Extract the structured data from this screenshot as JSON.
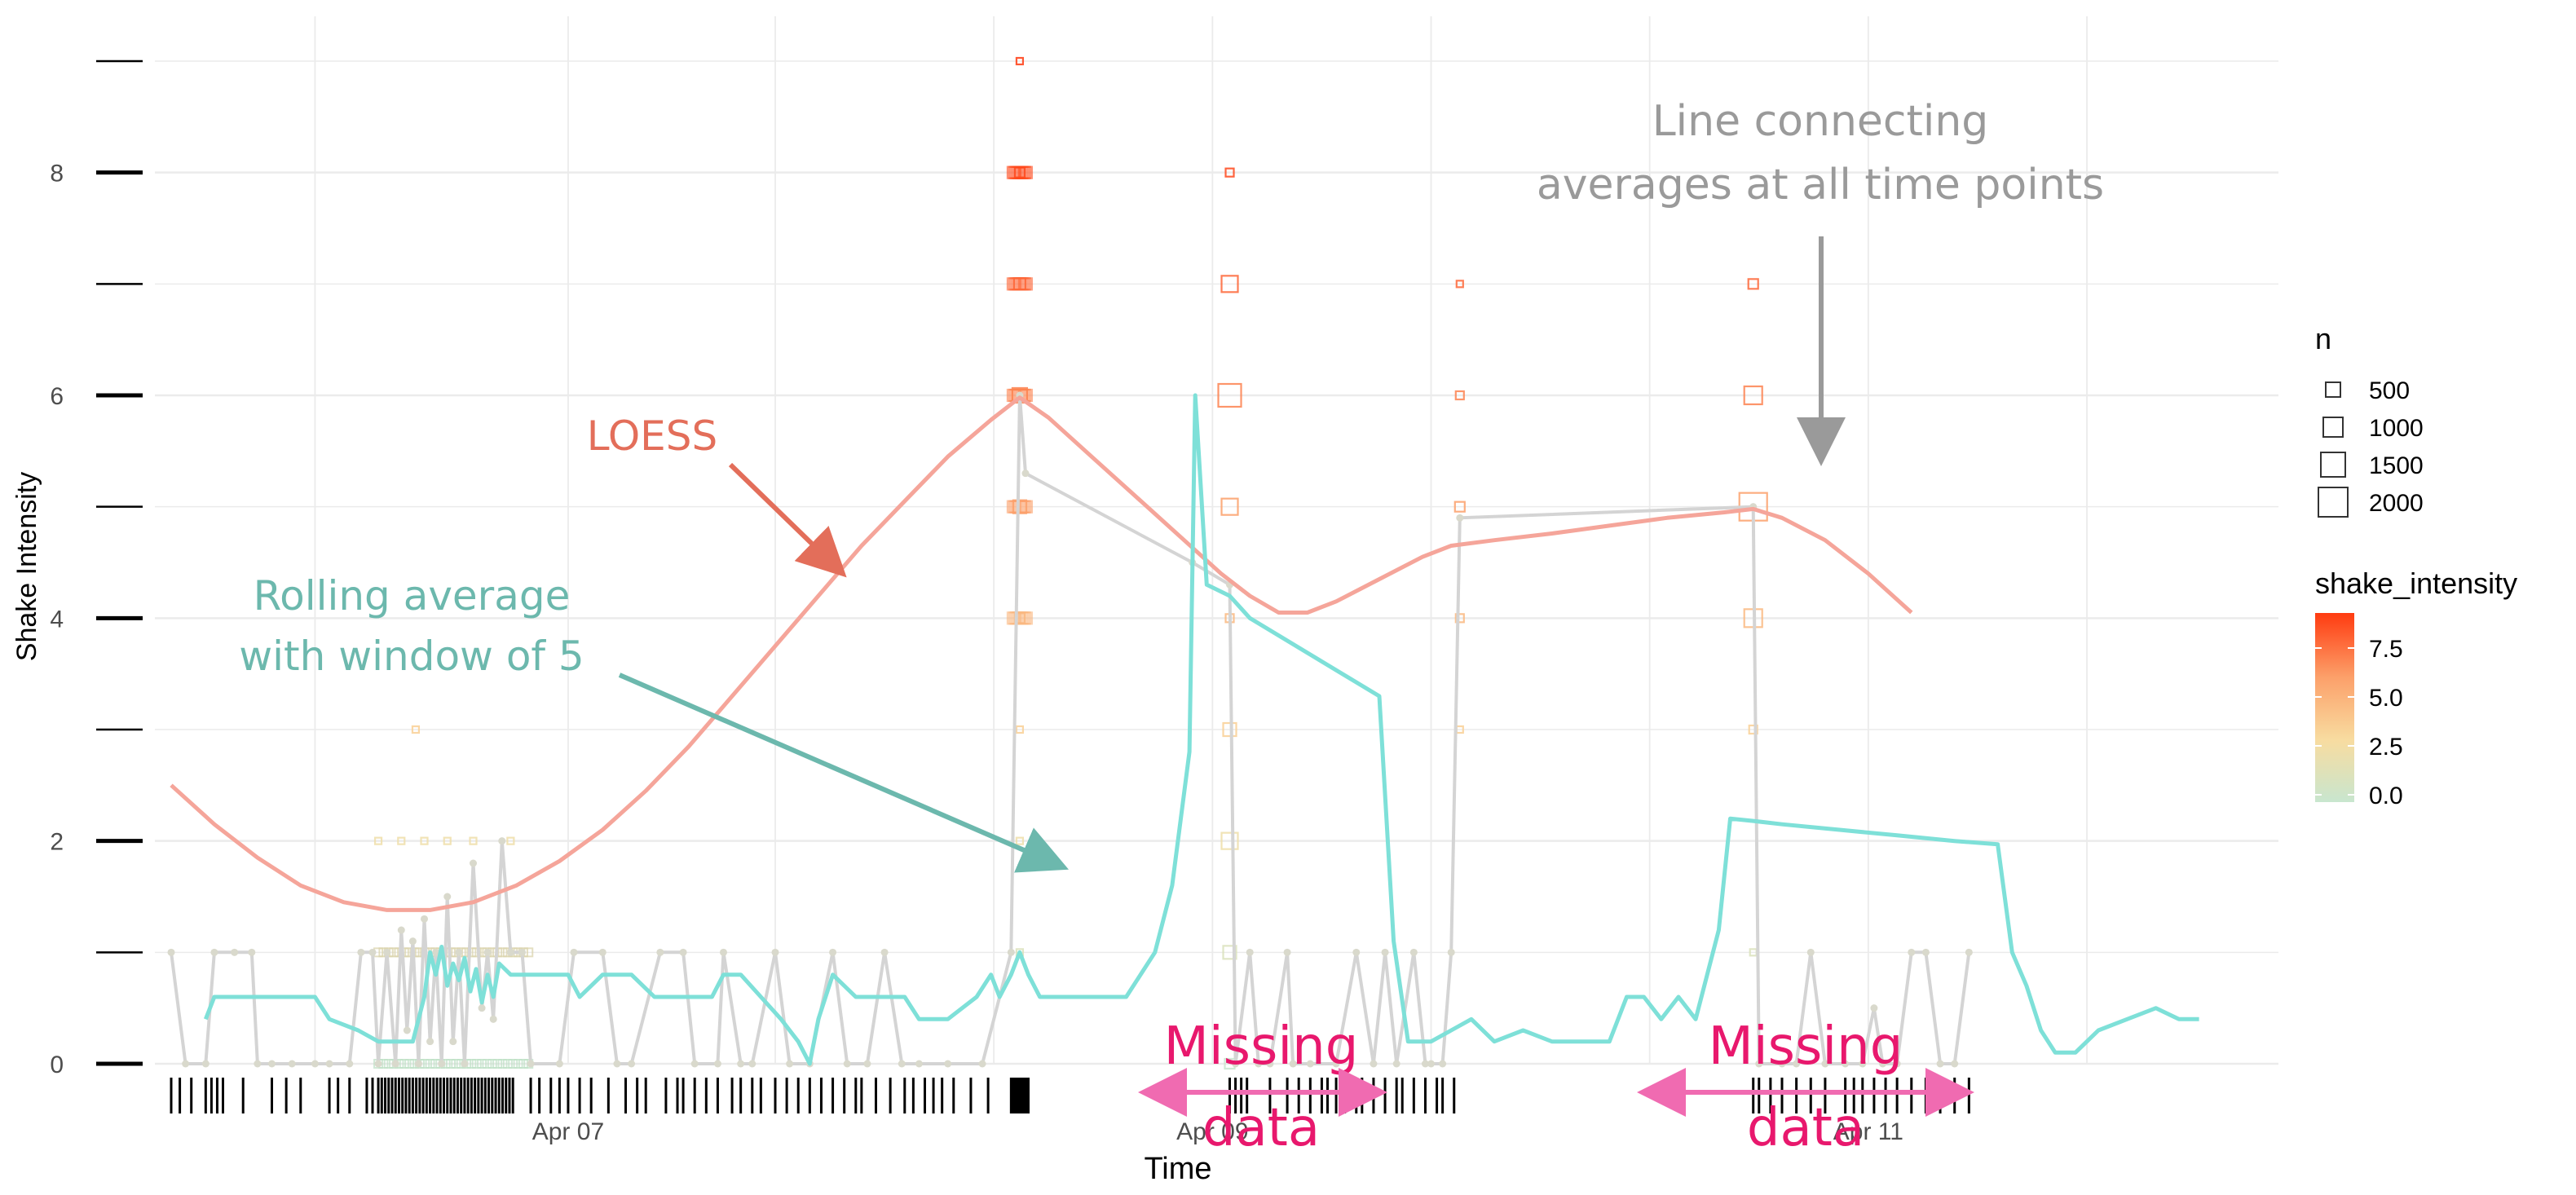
{
  "chart_data": {
    "type": "scatter",
    "title": "",
    "xlabel": "Time",
    "ylabel": "Shake Intensity",
    "x_ticks": [
      "Apr 07",
      "Apr 09",
      "Apr 11"
    ],
    "y_ticks": [
      "0",
      "2",
      "4",
      "6",
      "8"
    ],
    "ylim": [
      0,
      9
    ],
    "grid": true,
    "legend_size": {
      "title": "n",
      "entries": [
        {
          "label": "500",
          "value": 500
        },
        {
          "label": "1000",
          "value": 1000
        },
        {
          "label": "1500",
          "value": 1500
        },
        {
          "label": "2000",
          "value": 2000
        }
      ]
    },
    "legend_color": {
      "title": "shake_intensity",
      "ticks": [
        "7.5",
        "5.0",
        "2.5",
        "0.0"
      ],
      "low_color": "#c8e6cf",
      "mid_color": "#f8dca0",
      "high_color": "#ff3b10"
    },
    "colors": {
      "loess": "#f5a59a",
      "rolling": "#7ee0d8",
      "averages": "#d4d4d4",
      "grid": "#ebebeb"
    },
    "annotations": {
      "loess": "LOESS",
      "rolling_line1": "Rolling average",
      "rolling_line2": "with window of 5",
      "averages_line1": "Line connecting",
      "averages_line2": "averages at all time points",
      "missing1_line1": "Missing",
      "missing1_line2": "data",
      "missing2_line1": "Missing",
      "missing2_line2": "data"
    },
    "loess_series": [
      [
        0.0,
        2.5
      ],
      [
        0.15,
        2.15
      ],
      [
        0.3,
        1.85
      ],
      [
        0.45,
        1.6
      ],
      [
        0.6,
        1.45
      ],
      [
        0.75,
        1.38
      ],
      [
        0.9,
        1.38
      ],
      [
        1.05,
        1.45
      ],
      [
        1.2,
        1.6
      ],
      [
        1.35,
        1.82
      ],
      [
        1.5,
        2.1
      ],
      [
        1.65,
        2.45
      ],
      [
        1.8,
        2.85
      ],
      [
        1.95,
        3.3
      ],
      [
        2.1,
        3.75
      ],
      [
        2.25,
        4.2
      ],
      [
        2.4,
        4.65
      ],
      [
        2.55,
        5.05
      ],
      [
        2.7,
        5.45
      ],
      [
        2.85,
        5.78
      ],
      [
        2.95,
        5.98
      ],
      [
        3.05,
        5.8
      ],
      [
        3.2,
        5.45
      ],
      [
        3.35,
        5.1
      ],
      [
        3.5,
        4.75
      ],
      [
        3.65,
        4.4
      ],
      [
        3.75,
        4.2
      ],
      [
        3.85,
        4.05
      ],
      [
        3.95,
        4.05
      ],
      [
        4.05,
        4.15
      ],
      [
        4.2,
        4.35
      ],
      [
        4.35,
        4.55
      ],
      [
        4.45,
        4.65
      ],
      [
        4.6,
        4.7
      ],
      [
        4.8,
        4.76
      ],
      [
        5.0,
        4.83
      ],
      [
        5.2,
        4.9
      ],
      [
        5.4,
        4.95
      ],
      [
        5.5,
        4.98
      ],
      [
        5.6,
        4.9
      ],
      [
        5.75,
        4.7
      ],
      [
        5.9,
        4.4
      ],
      [
        6.05,
        4.05
      ]
    ],
    "average_series": [
      [
        0.0,
        1
      ],
      [
        0.05,
        0
      ],
      [
        0.12,
        0
      ],
      [
        0.15,
        1
      ],
      [
        0.22,
        1
      ],
      [
        0.28,
        1
      ],
      [
        0.3,
        0
      ],
      [
        0.35,
        0
      ],
      [
        0.42,
        0
      ],
      [
        0.5,
        0
      ],
      [
        0.55,
        0
      ],
      [
        0.62,
        0
      ],
      [
        0.66,
        1
      ],
      [
        0.7,
        1
      ],
      [
        0.72,
        0
      ],
      [
        0.75,
        1
      ],
      [
        0.78,
        0
      ],
      [
        0.8,
        1.2
      ],
      [
        0.82,
        0.3
      ],
      [
        0.84,
        1.1
      ],
      [
        0.86,
        0
      ],
      [
        0.88,
        1.3
      ],
      [
        0.9,
        0.2
      ],
      [
        0.92,
        1
      ],
      [
        0.94,
        0
      ],
      [
        0.96,
        1.5
      ],
      [
        0.98,
        0.2
      ],
      [
        1.0,
        1
      ],
      [
        1.02,
        0
      ],
      [
        1.05,
        1.8
      ],
      [
        1.08,
        0.5
      ],
      [
        1.1,
        1
      ],
      [
        1.12,
        0.4
      ],
      [
        1.15,
        2
      ],
      [
        1.18,
        1
      ],
      [
        1.22,
        1
      ],
      [
        1.25,
        0
      ],
      [
        1.35,
        0
      ],
      [
        1.4,
        1
      ],
      [
        1.5,
        1
      ],
      [
        1.55,
        0
      ],
      [
        1.6,
        0
      ],
      [
        1.7,
        1
      ],
      [
        1.78,
        1
      ],
      [
        1.82,
        0
      ],
      [
        1.9,
        0
      ],
      [
        1.92,
        1
      ],
      [
        1.98,
        0
      ],
      [
        2.02,
        0
      ],
      [
        2.1,
        1
      ],
      [
        2.15,
        0
      ],
      [
        2.22,
        0
      ],
      [
        2.3,
        1
      ],
      [
        2.35,
        0
      ],
      [
        2.42,
        0
      ],
      [
        2.48,
        1
      ],
      [
        2.54,
        0
      ],
      [
        2.6,
        0
      ],
      [
        2.7,
        0
      ],
      [
        2.82,
        0
      ],
      [
        2.92,
        1
      ],
      [
        2.95,
        6
      ],
      [
        2.97,
        5.3
      ],
      [
        3.55,
        4.5
      ],
      [
        3.68,
        4.3
      ],
      [
        3.7,
        0
      ],
      [
        3.75,
        1
      ],
      [
        3.78,
        0
      ],
      [
        3.82,
        0
      ],
      [
        3.88,
        1
      ],
      [
        3.9,
        0
      ],
      [
        3.96,
        0
      ],
      [
        4.05,
        0
      ],
      [
        4.12,
        1
      ],
      [
        4.18,
        0
      ],
      [
        4.22,
        1
      ],
      [
        4.26,
        0
      ],
      [
        4.32,
        1
      ],
      [
        4.36,
        0
      ],
      [
        4.38,
        0
      ],
      [
        4.42,
        0
      ],
      [
        4.45,
        1
      ],
      [
        4.48,
        4.9
      ],
      [
        5.5,
        5.0
      ],
      [
        5.52,
        0
      ],
      [
        5.6,
        0
      ],
      [
        5.65,
        0
      ],
      [
        5.7,
        1
      ],
      [
        5.75,
        0
      ],
      [
        5.82,
        0
      ],
      [
        5.88,
        0
      ],
      [
        5.92,
        0.5
      ],
      [
        5.95,
        0
      ],
      [
        6.0,
        0
      ],
      [
        6.05,
        1
      ],
      [
        6.1,
        1
      ],
      [
        6.15,
        0
      ],
      [
        6.2,
        0
      ],
      [
        6.25,
        1
      ]
    ],
    "rolling_series": [
      [
        0.12,
        0.4
      ],
      [
        0.15,
        0.6
      ],
      [
        0.2,
        0.6
      ],
      [
        0.3,
        0.6
      ],
      [
        0.4,
        0.6
      ],
      [
        0.45,
        0.6
      ],
      [
        0.5,
        0.6
      ],
      [
        0.55,
        0.4
      ],
      [
        0.65,
        0.3
      ],
      [
        0.72,
        0.2
      ],
      [
        0.8,
        0.2
      ],
      [
        0.84,
        0.2
      ],
      [
        0.88,
        0.6
      ],
      [
        0.9,
        1.0
      ],
      [
        0.92,
        0.8
      ],
      [
        0.94,
        1.05
      ],
      [
        0.96,
        0.7
      ],
      [
        0.98,
        0.9
      ],
      [
        1.0,
        0.75
      ],
      [
        1.02,
        0.95
      ],
      [
        1.04,
        0.65
      ],
      [
        1.06,
        0.85
      ],
      [
        1.08,
        0.55
      ],
      [
        1.1,
        0.8
      ],
      [
        1.12,
        0.6
      ],
      [
        1.14,
        0.9
      ],
      [
        1.18,
        0.8
      ],
      [
        1.22,
        0.8
      ],
      [
        1.3,
        0.8
      ],
      [
        1.38,
        0.8
      ],
      [
        1.42,
        0.6
      ],
      [
        1.5,
        0.8
      ],
      [
        1.6,
        0.8
      ],
      [
        1.68,
        0.6
      ],
      [
        1.75,
        0.6
      ],
      [
        1.82,
        0.6
      ],
      [
        1.88,
        0.6
      ],
      [
        1.92,
        0.8
      ],
      [
        1.98,
        0.8
      ],
      [
        2.05,
        0.6
      ],
      [
        2.12,
        0.4
      ],
      [
        2.18,
        0.2
      ],
      [
        2.22,
        0.0
      ],
      [
        2.25,
        0.4
      ],
      [
        2.3,
        0.8
      ],
      [
        2.38,
        0.6
      ],
      [
        2.48,
        0.6
      ],
      [
        2.55,
        0.6
      ],
      [
        2.6,
        0.4
      ],
      [
        2.7,
        0.4
      ],
      [
        2.8,
        0.6
      ],
      [
        2.85,
        0.8
      ],
      [
        2.88,
        0.6
      ],
      [
        2.92,
        0.8
      ],
      [
        2.95,
        1.0
      ],
      [
        2.98,
        0.8
      ],
      [
        3.02,
        0.6
      ],
      [
        3.12,
        0.6
      ],
      [
        3.22,
        0.6
      ],
      [
        3.32,
        0.6
      ],
      [
        3.42,
        1.0
      ],
      [
        3.48,
        1.6
      ],
      [
        3.54,
        2.8
      ],
      [
        3.56,
        6.0
      ],
      [
        3.6,
        4.3
      ],
      [
        3.68,
        4.2
      ],
      [
        3.75,
        4.0
      ],
      [
        4.2,
        3.3
      ],
      [
        4.25,
        1.1
      ],
      [
        4.3,
        0.2
      ],
      [
        4.38,
        0.2
      ],
      [
        4.45,
        0.3
      ],
      [
        4.52,
        0.4
      ],
      [
        4.6,
        0.2
      ],
      [
        4.7,
        0.3
      ],
      [
        4.8,
        0.2
      ],
      [
        4.9,
        0.2
      ],
      [
        5.0,
        0.2
      ],
      [
        5.06,
        0.6
      ],
      [
        5.12,
        0.6
      ],
      [
        5.18,
        0.4
      ],
      [
        5.24,
        0.6
      ],
      [
        5.3,
        0.4
      ],
      [
        5.38,
        1.2
      ],
      [
        5.42,
        2.2
      ],
      [
        5.5,
        2.18
      ],
      [
        5.6,
        2.15
      ],
      [
        5.8,
        2.1
      ],
      [
        6.0,
        2.05
      ],
      [
        6.2,
        2.0
      ],
      [
        6.35,
        1.97
      ],
      [
        6.4,
        1.0
      ],
      [
        6.45,
        0.7
      ],
      [
        6.5,
        0.3
      ],
      [
        6.55,
        0.1
      ],
      [
        6.62,
        0.1
      ],
      [
        6.7,
        0.3
      ],
      [
        6.8,
        0.4
      ],
      [
        6.9,
        0.5
      ],
      [
        6.98,
        0.4
      ],
      [
        7.05,
        0.4
      ]
    ]
  }
}
